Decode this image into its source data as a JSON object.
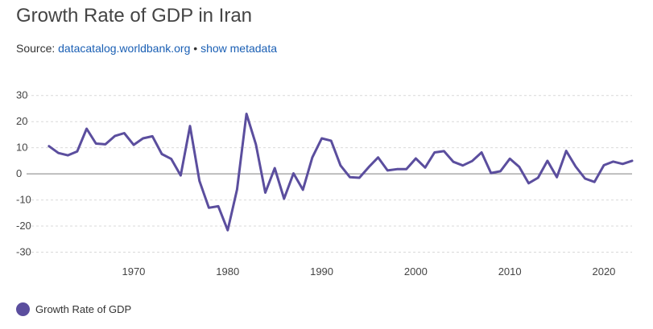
{
  "header": {
    "title": "Growth Rate of GDP in Iran",
    "source_prefix": "Source:",
    "source_link": "datacatalog.worldbank.org",
    "separator": "•",
    "metadata_link": "show metadata"
  },
  "colors": {
    "series": "#5b4e9e",
    "grid": "#d9d9d9",
    "zero_line": "#999999",
    "link": "#1a5fb4"
  },
  "chart_data": {
    "type": "line",
    "title": "Growth Rate of GDP in Iran",
    "xlabel": "",
    "ylabel": "",
    "xlim": [
      1960.5,
      2023
    ],
    "ylim": [
      -32,
      33
    ],
    "x_ticks": [
      1970,
      1980,
      1990,
      2000,
      2010,
      2020
    ],
    "y_ticks": [
      30,
      20,
      10,
      0,
      -10,
      -20,
      -30
    ],
    "grid": "horizontal dashed",
    "legend_position": "bottom-left",
    "series": [
      {
        "name": "Growth Rate of GDP",
        "x": [
          1961,
          1962,
          1963,
          1964,
          1965,
          1966,
          1967,
          1968,
          1969,
          1970,
          1971,
          1972,
          1973,
          1974,
          1975,
          1976,
          1977,
          1978,
          1979,
          1980,
          1981,
          1982,
          1983,
          1984,
          1985,
          1986,
          1987,
          1988,
          1989,
          1990,
          1991,
          1992,
          1993,
          1994,
          1995,
          1996,
          1997,
          1998,
          1999,
          2000,
          2001,
          2002,
          2003,
          2004,
          2005,
          2006,
          2007,
          2008,
          2009,
          2010,
          2011,
          2012,
          2013,
          2014,
          2015,
          2016,
          2017,
          2018,
          2019,
          2020,
          2021,
          2022,
          2023
        ],
        "values": [
          10.6,
          8.0,
          7.1,
          8.6,
          17.3,
          11.6,
          11.3,
          14.5,
          15.6,
          11.1,
          13.6,
          14.4,
          7.6,
          5.7,
          -0.6,
          18.3,
          -2.7,
          -13.0,
          -12.4,
          -21.6,
          -6.0,
          23.0,
          11.3,
          -7.2,
          2.2,
          -9.5,
          0.2,
          -6.1,
          6.3,
          13.6,
          12.7,
          3.2,
          -1.3,
          -1.5,
          2.6,
          6.3,
          1.3,
          1.8,
          1.8,
          5.9,
          2.4,
          8.2,
          8.7,
          4.6,
          3.2,
          4.9,
          8.2,
          0.3,
          1.0,
          5.8,
          2.7,
          -3.6,
          -1.5,
          5.0,
          -1.3,
          8.8,
          2.8,
          -1.8,
          -3.1,
          3.3,
          4.7,
          3.8,
          5.0
        ]
      }
    ]
  },
  "legend": {
    "label": "Growth Rate of GDP"
  }
}
